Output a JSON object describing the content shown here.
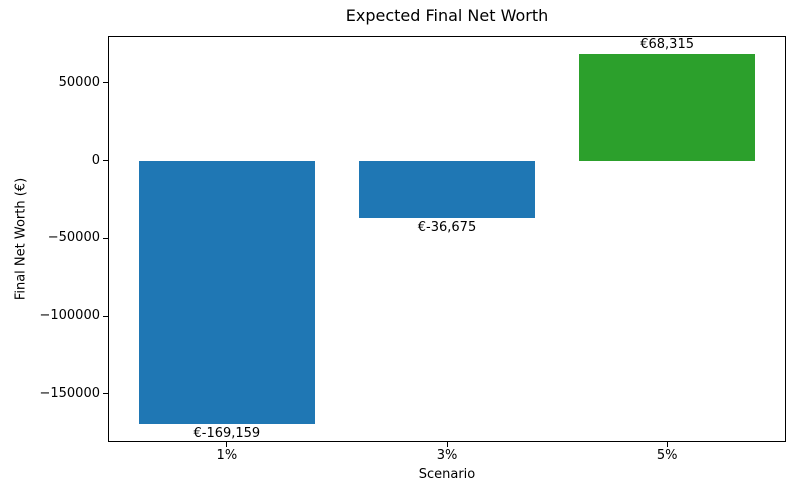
{
  "chart_data": {
    "type": "bar",
    "title": "Expected Final Net Worth",
    "xlabel": "Scenario",
    "ylabel": "Final Net Worth (€)",
    "categories": [
      "1%",
      "3%",
      "5%"
    ],
    "values": [
      -169159,
      -36675,
      68315
    ],
    "bar_labels": [
      "€-169,159",
      "€-36,675",
      "€68,315"
    ],
    "bar_colors": [
      "#1f77b4",
      "#1f77b4",
      "#2ca02c"
    ],
    "ylim": [
      -181033,
      80189
    ],
    "yticks": [
      50000,
      0,
      -50000,
      -100000,
      -150000
    ],
    "ytick_labels": [
      "50000",
      "0",
      "−50000",
      "−100000",
      "−150000"
    ],
    "grid": false,
    "legend_position": "none",
    "background_color": "#ffffff",
    "spine_color": "#000000"
  }
}
